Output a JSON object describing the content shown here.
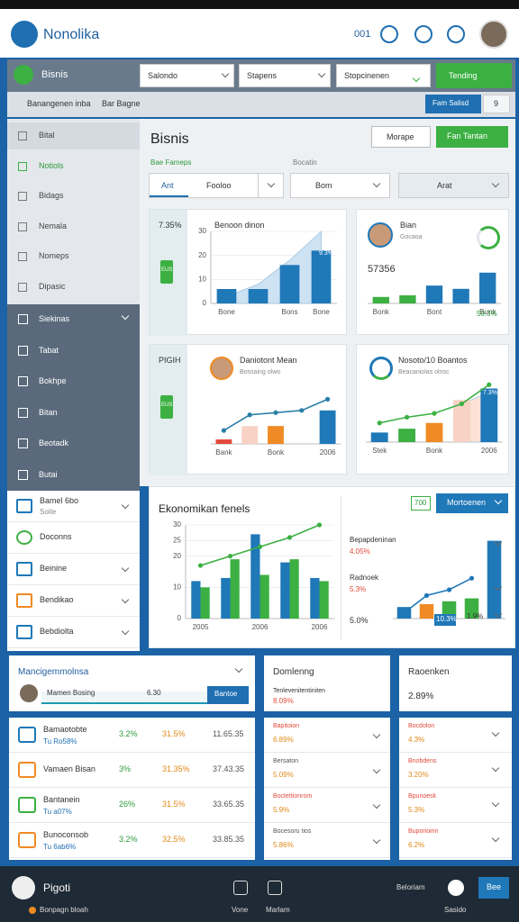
{
  "header": {
    "brand": "Nonolika",
    "badge": "001"
  },
  "toolbar": {
    "app": "Bisnis",
    "selects": [
      "Salondo",
      "Stapens",
      "Stopcinenen"
    ],
    "action": "Tending",
    "breadcrumb": [
      "Banangenen inba",
      "Bar Bagne"
    ],
    "button": "Fam Salisd",
    "count": "9"
  },
  "sidebar": {
    "items": [
      "Bital",
      "Notiols",
      "Bidags",
      "Nemala",
      "Nomeps",
      "Dipasic"
    ],
    "groups": [
      "Siekinas",
      "Tabat",
      "Bokhpe",
      "Bitan",
      "Beotadk",
      "Butai"
    ],
    "list": [
      {
        "title": "Bamel 6bo",
        "sub": "Soite"
      },
      {
        "title": "Doconns"
      },
      {
        "title": "Beinine"
      },
      {
        "title": "Bendikao"
      },
      {
        "title": "Bebdiolta"
      }
    ]
  },
  "main": {
    "title": "Bisnis",
    "buttons": [
      "Morape",
      "Fan Tantan"
    ],
    "tabs": [
      "Bae Fameps",
      "Bocatin"
    ],
    "filters": [
      "Ant",
      "Fooloo",
      "Bom",
      "Arat"
    ]
  },
  "cards": [
    {
      "side": "7.35%",
      "chip": "EUS",
      "chart_data": {
        "type": "bar",
        "title": "Benoon dinon",
        "annotation": "9.3%",
        "categories": [
          "Bone",
          null,
          "Bons",
          "Bone"
        ],
        "ylim": [
          0,
          30
        ],
        "yticks": [
          0,
          10,
          20,
          30
        ],
        "series": [
          {
            "type": "area",
            "color": "#cde2f2",
            "values": [
              3,
              8,
              18,
              30
            ]
          },
          {
            "type": "bar",
            "color": "#1f78b8",
            "values": [
              6,
              6,
              16,
              22
            ]
          }
        ]
      }
    },
    {
      "chart_data": {
        "type": "bar",
        "title": "Bian",
        "subtitle": "Gocaoa",
        "value": "57356",
        "annotation": "59.3%",
        "categories": [
          "Bonk",
          null,
          "Bont",
          null,
          "Bunk"
        ],
        "ylim": [
          0,
          30
        ],
        "series": [
          {
            "type": "bar",
            "colors": [
              "#3cb043",
              "#3cb043",
              "#1f78b8",
              "#1f78b8",
              "#1f78b8"
            ],
            "values": [
              4,
              5,
              11,
              9,
              19
            ]
          }
        ]
      }
    },
    {
      "side": "PIGIH",
      "chip": "EUS",
      "chart_data": {
        "type": "bar",
        "title": "Daniotont Mean",
        "subtitle": "Bossaing olwo",
        "categories": [
          "Bank",
          null,
          "Bonk",
          null,
          "2006"
        ],
        "ylim": [
          0,
          25
        ],
        "series": [
          {
            "type": "bar",
            "colors": [
              "#e24a3b",
              "#f8d2c4",
              "#f08a24",
              null,
              "#1f78b8"
            ],
            "values": [
              2,
              8,
              8,
              null,
              15
            ]
          },
          {
            "type": "line",
            "color": "#2a7fa6",
            "values": [
              6,
              13,
              14,
              15,
              20
            ]
          }
        ]
      }
    },
    {
      "chart_data": {
        "type": "bar",
        "title": "Nosoto/10 Boantos",
        "subtitle": "Beacaniolas olnsc",
        "annotation": "7.3%",
        "categories": [
          "Stek",
          null,
          "Bonk",
          null,
          "2006"
        ],
        "ylim": [
          0,
          32
        ],
        "series": [
          {
            "type": "area",
            "color": "#fbe1d6",
            "values": [
              null,
              null,
              null,
              20,
              26
            ]
          },
          {
            "type": "bar",
            "colors": [
              "#1f78b8",
              "#3cb043",
              "#f08a24",
              "#f8d2c4",
              "#1f78b8"
            ],
            "values": [
              5,
              7,
              10,
              22,
              28
            ]
          },
          {
            "type": "line",
            "color": "#3cb043",
            "values": [
              10,
              13,
              15,
              20,
              30
            ]
          }
        ]
      }
    }
  ],
  "big": {
    "badge": "700",
    "button": "Mortoenen",
    "chart_data": {
      "type": "bar",
      "title": "Ekonomikan fenels",
      "categories": [
        "2005",
        null,
        "2006",
        null,
        "2006"
      ],
      "ylim": [
        0,
        30
      ],
      "yticks": [
        0,
        10,
        20,
        25,
        30
      ],
      "series": [
        {
          "type": "bar",
          "color": "#1f78b8",
          "values": [
            12,
            13,
            27,
            18,
            13
          ]
        },
        {
          "type": "bar",
          "color": "#3cb043",
          "values": [
            10,
            19,
            14,
            19,
            12
          ]
        },
        {
          "type": "line",
          "color": "#3cb043",
          "values": [
            17,
            20,
            23,
            26,
            30
          ]
        }
      ]
    },
    "side_chart": {
      "type": "bar",
      "ylim": [
        0,
        30
      ],
      "series": [
        {
          "type": "bar",
          "colors": [
            "#1f78b8",
            "#f08a24",
            "#3cb043",
            "#3cb043",
            "#1f78b8"
          ],
          "values": [
            4,
            5,
            6,
            7,
            27
          ]
        },
        {
          "type": "line",
          "color": "#1f78b8",
          "values": [
            2,
            8,
            10,
            14,
            null
          ]
        }
      ]
    },
    "notes": [
      {
        "label": "Bepapdeninan",
        "value": "4.05%"
      },
      {
        "label": "Radnoek",
        "value": "5.3%"
      }
    ],
    "marks": [
      "5.0%",
      "10.3%",
      "1.9%"
    ]
  },
  "panels": [
    {
      "title": "Mancigemmolnsa",
      "progress_label": "Mamen Bosing",
      "progress_value": "6.30",
      "button": "Bantoe",
      "rows": [
        {
          "name": "Bamaotobte",
          "sub": "Tu Ro58%",
          "a": "3.2%",
          "b": "31.5%",
          "c": "11.65.35"
        },
        {
          "name": "Vamaen Bisan",
          "a": "3%",
          "b": "31.35%",
          "c": "37.43.35"
        },
        {
          "name": "Bantanein",
          "sub": "Tu a07%",
          "a": "26%",
          "b": "31.5%",
          "c": "33.65.35"
        },
        {
          "name": "Bunoconsob",
          "sub": "Tu 6ab6%",
          "a": "3.2%",
          "b": "32.5%",
          "c": "33.85.35"
        }
      ]
    },
    {
      "title": "Domlenng",
      "rows": [
        {
          "name": "Tenlevenitentiniten",
          "value": "8.09%"
        },
        {
          "name": "Bapitoion",
          "value": "6.89%"
        },
        {
          "name": "Bersaton",
          "value": "5.09%"
        },
        {
          "name": "Boctettionrom",
          "value": "5.9%"
        },
        {
          "name": "Bocesoru tios",
          "value": "5.86%"
        }
      ]
    },
    {
      "title": "Raoenken",
      "value": "2.89%",
      "rows": [
        {
          "name": "Bocdolon",
          "value": "4.3%"
        },
        {
          "name": "Bnobdens",
          "value": "3.20%"
        },
        {
          "name": "Bpunoesk",
          "value": "5.3%"
        },
        {
          "name": "Buporioinn",
          "value": "6.2%"
        }
      ]
    }
  ],
  "nav": {
    "user": "Pigoti",
    "sub": "Bonpagn bloah",
    "items": [
      "Vone",
      "Marlam",
      "Beloriam",
      "Sasido"
    ],
    "button": "Bee"
  }
}
